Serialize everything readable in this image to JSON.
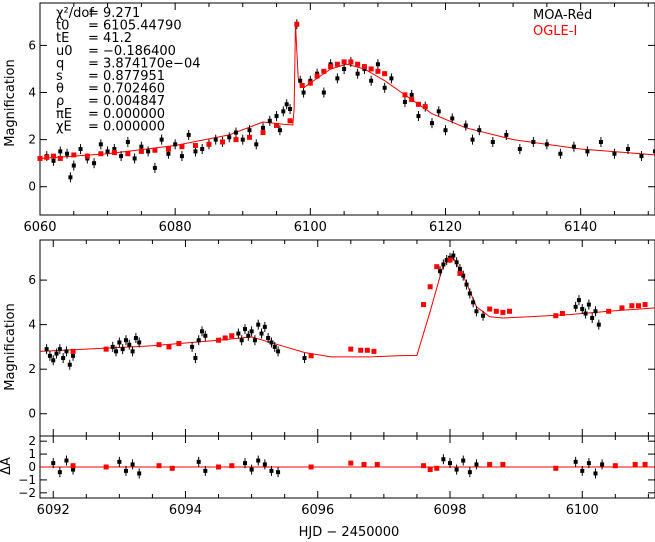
{
  "chart_data": [
    {
      "type": "scatter",
      "panel": "top",
      "ylabel": "Magnification",
      "xlim": [
        6060,
        6151
      ],
      "ylim": [
        -1.2,
        7.8
      ],
      "xticks": [
        6060,
        6080,
        6100,
        6120,
        6140
      ],
      "yticks": [
        0,
        2,
        4,
        6
      ],
      "legend": [
        {
          "name": "MOA-Red",
          "color": "#000000"
        },
        {
          "name": "OGLE-I",
          "color": "#ff0000"
        }
      ],
      "params": [
        {
          "name": "χ²/dof",
          "value": "= 9.271"
        },
        {
          "name": "t0",
          "value": "= 6105.44790"
        },
        {
          "name": "tE",
          "value": "= 41.2"
        },
        {
          "name": "u0",
          "value": "= −0.186400"
        },
        {
          "name": "q",
          "value": "= 3.874170e−04"
        },
        {
          "name": "s",
          "value": "= 0.877951"
        },
        {
          "name": "θ",
          "value": "= 0.702460"
        },
        {
          "name": "ρ",
          "value": "= 0.004847"
        },
        {
          "name": "πE",
          "value": "= 0.000000"
        },
        {
          "name": "χE",
          "value": "= 0.000000"
        }
      ],
      "model": {
        "x": [
          6060,
          6070,
          6080,
          6088,
          6093,
          6096,
          6097.4,
          6097.6,
          6097.8,
          6098.2,
          6099,
          6101,
          6103,
          6105.4,
          6108,
          6111,
          6114,
          6118,
          6123,
          6130,
          6140,
          6151
        ],
        "y": [
          1.2,
          1.4,
          1.75,
          2.2,
          2.75,
          2.65,
          2.62,
          3.3,
          6.9,
          4.6,
          4.2,
          4.6,
          5.0,
          5.2,
          5.0,
          4.5,
          3.9,
          3.1,
          2.5,
          2.0,
          1.6,
          1.35
        ]
      },
      "series": [
        {
          "name": "MOA-Red",
          "color": "#000000",
          "x": [
            6060,
            6061,
            6062,
            6063,
            6064,
            6064.5,
            6065,
            6066,
            6067,
            6068,
            6069,
            6070,
            6071,
            6072,
            6073,
            6074,
            6075,
            6076,
            6077,
            6078,
            6079,
            6080,
            6081,
            6082,
            6083,
            6084,
            6085,
            6086,
            6087,
            6088,
            6089,
            6090,
            6091,
            6092,
            6093,
            6094,
            6095,
            6095.5,
            6096,
            6096.5,
            6097,
            6098,
            6098.5,
            6099,
            6100,
            6101,
            6102,
            6103,
            6104,
            6105,
            6106,
            6107,
            6108,
            6109,
            6110,
            6111,
            6112,
            6114,
            6115,
            6116,
            6117,
            6118,
            6119,
            6120,
            6121,
            6123,
            6124,
            6125,
            6127,
            6129,
            6131,
            6133,
            6135,
            6137,
            6139,
            6141,
            6143,
            6145,
            6147,
            6149,
            6151
          ],
          "y": [
            1.2,
            1.3,
            1.1,
            1.5,
            1.4,
            0.4,
            0.9,
            1.6,
            1.2,
            1.0,
            1.8,
            1.5,
            1.6,
            1.3,
            1.9,
            1.2,
            1.7,
            1.5,
            0.8,
            2.0,
            1.4,
            1.8,
            1.3,
            2.2,
            1.5,
            1.6,
            1.8,
            2.0,
            1.9,
            2.1,
            2.3,
            2.0,
            2.4,
            1.8,
            2.5,
            2.8,
            3.0,
            2.4,
            3.2,
            3.5,
            3.3,
            6.9,
            4.5,
            4.0,
            4.5,
            4.8,
            4.0,
            5.2,
            4.6,
            5.0,
            5.3,
            4.8,
            5.0,
            4.5,
            5.2,
            4.2,
            4.6,
            3.6,
            3.9,
            3.0,
            3.4,
            2.7,
            3.2,
            2.4,
            2.9,
            2.6,
            2.0,
            2.4,
            1.9,
            2.2,
            1.6,
            1.9,
            1.8,
            1.4,
            1.7,
            1.5,
            1.9,
            1.4,
            1.6,
            1.3,
            1.5
          ]
        },
        {
          "name": "OGLE-I",
          "color": "#ff0000",
          "x": [
            6060,
            6061,
            6062,
            6063,
            6065,
            6067,
            6069,
            6071,
            6073,
            6075,
            6077,
            6079,
            6081,
            6083,
            6085,
            6087,
            6089,
            6091,
            6093,
            6095,
            6097,
            6098,
            6098.8,
            6100,
            6101,
            6102,
            6103,
            6104,
            6105,
            6106,
            6107,
            6108,
            6109,
            6110,
            6111,
            6114,
            6115,
            6116,
            6117
          ],
          "y": [
            1.2,
            1.25,
            1.3,
            1.2,
            1.35,
            1.3,
            1.4,
            1.45,
            1.4,
            1.5,
            1.55,
            1.6,
            1.7,
            1.75,
            1.8,
            1.9,
            2.0,
            2.1,
            2.3,
            2.6,
            2.8,
            6.9,
            4.3,
            4.4,
            4.7,
            4.9,
            5.1,
            5.2,
            5.3,
            5.3,
            5.2,
            5.1,
            5.0,
            4.9,
            4.8,
            3.9,
            3.7,
            3.5,
            3.4
          ]
        }
      ]
    },
    {
      "type": "scatter",
      "panel": "middle",
      "ylabel": "Magnification",
      "xlim": [
        6091.8,
        6101.1
      ],
      "ylim": [
        -1,
        7.8
      ],
      "xticks": [
        6092,
        6094,
        6096,
        6098,
        6100
      ],
      "yticks": [
        0,
        2,
        4,
        6
      ],
      "model": {
        "x": [
          6091.8,
          6092.5,
          6093.5,
          6094.5,
          6095,
          6095.4,
          6095.8,
          6096.2,
          6096.8,
          6097.2,
          6097.5,
          6097.7,
          6097.9,
          6098.05,
          6098.2,
          6098.4,
          6098.6,
          6098.8,
          6099.2,
          6099.8,
          6100.4,
          6101.1
        ],
        "y": [
          2.8,
          2.9,
          3.05,
          3.3,
          3.45,
          3.1,
          2.75,
          2.55,
          2.55,
          2.6,
          2.62,
          4.6,
          6.7,
          7.0,
          6.2,
          4.8,
          4.35,
          4.3,
          4.35,
          4.45,
          4.6,
          4.75
        ]
      },
      "series": [
        {
          "name": "MOA-Red",
          "color": "#000000",
          "x": [
            6091.9,
            6091.95,
            6092.0,
            6092.05,
            6092.1,
            6092.15,
            6092.2,
            6092.25,
            6092.3,
            6092.9,
            6092.95,
            6093.0,
            6093.05,
            6093.1,
            6093.15,
            6093.2,
            6093.25,
            6093.3,
            6094.1,
            6094.15,
            6094.2,
            6094.25,
            6094.3,
            6094.8,
            6094.85,
            6094.9,
            6094.95,
            6095.0,
            6095.05,
            6095.1,
            6095.15,
            6095.2,
            6095.25,
            6095.3,
            6095.35,
            6095.4,
            6095.8,
            6097.85,
            6097.9,
            6097.95,
            6098.0,
            6098.05,
            6098.1,
            6098.15,
            6098.2,
            6098.25,
            6098.3,
            6098.35,
            6098.4,
            6098.5,
            6099.9,
            6099.95,
            6100.0,
            6100.05,
            6100.1,
            6100.15,
            6100.2,
            6100.25
          ],
          "y": [
            2.9,
            2.6,
            2.4,
            2.7,
            2.9,
            2.5,
            2.8,
            2.2,
            2.6,
            3.0,
            2.8,
            3.2,
            2.9,
            3.3,
            3.1,
            2.8,
            3.4,
            3.2,
            3.0,
            2.5,
            3.3,
            3.7,
            3.5,
            3.6,
            3.3,
            3.8,
            3.5,
            3.7,
            3.3,
            4.0,
            3.6,
            3.9,
            3.4,
            3.2,
            3.0,
            2.8,
            2.5,
            6.4,
            6.7,
            6.9,
            7.0,
            7.1,
            6.8,
            6.5,
            6.2,
            5.8,
            5.4,
            5.0,
            4.6,
            4.4,
            4.8,
            5.1,
            4.7,
            4.5,
            4.9,
            4.3,
            4.6,
            4.0
          ]
        },
        {
          "name": "OGLE-I",
          "color": "#ff0000",
          "x": [
            6092.3,
            6092.8,
            6093.6,
            6093.75,
            6093.9,
            6094.5,
            6094.6,
            6094.7,
            6095.9,
            6096.5,
            6096.65,
            6096.75,
            6096.85,
            6097.6,
            6097.7,
            6097.8,
            6098.0,
            6098.15,
            6098.6,
            6098.7,
            6098.8,
            6098.9,
            6099.6,
            6099.7,
            6100.4,
            6100.6,
            6100.75,
            6100.85,
            6100.95
          ],
          "y": [
            2.8,
            2.9,
            3.1,
            3.0,
            3.15,
            3.3,
            3.4,
            3.5,
            2.6,
            2.9,
            2.85,
            2.85,
            2.8,
            4.9,
            5.7,
            6.6,
            6.9,
            6.3,
            4.7,
            4.6,
            4.55,
            4.6,
            4.4,
            4.5,
            4.6,
            4.75,
            4.85,
            4.85,
            4.9
          ]
        }
      ]
    },
    {
      "type": "scatter",
      "panel": "residuals",
      "ylabel": "ΔA",
      "xlabel": "HJD − 2450000",
      "xlim": [
        6091.8,
        6101.1
      ],
      "ylim": [
        -2.4,
        2.4
      ],
      "xticks": [
        6092,
        6094,
        6096,
        6098,
        6100
      ],
      "yticks": [
        -2,
        -1,
        0,
        1,
        2
      ],
      "ytick_labels": [
        "−2",
        "−1",
        "0",
        "1",
        "2"
      ],
      "series": [
        {
          "name": "MOA-Red",
          "color": "#000000",
          "x": [
            6092.0,
            6092.1,
            6092.2,
            6092.3,
            6093.0,
            6093.1,
            6093.2,
            6093.3,
            6094.2,
            6094.3,
            6094.9,
            6095.0,
            6095.1,
            6095.2,
            6095.3,
            6095.4,
            6097.9,
            6098.0,
            6098.1,
            6098.2,
            6098.3,
            6098.4,
            6099.9,
            6100.0,
            6100.1,
            6100.2,
            6100.3
          ],
          "y": [
            0.3,
            -0.4,
            0.5,
            -0.2,
            0.4,
            -0.3,
            0.2,
            -0.5,
            0.4,
            -0.3,
            0.3,
            -0.2,
            0.5,
            0.2,
            -0.3,
            -0.4,
            0.6,
            0.3,
            -0.2,
            0.5,
            -0.4,
            0.2,
            0.4,
            -0.3,
            0.3,
            -0.5,
            0.2
          ]
        },
        {
          "name": "OGLE-I",
          "color": "#ff0000",
          "x": [
            6092.3,
            6092.8,
            6093.6,
            6093.8,
            6094.5,
            6094.7,
            6095.9,
            6096.5,
            6096.7,
            6096.9,
            6097.6,
            6097.7,
            6097.8,
            6098.6,
            6098.8,
            6099.6,
            6100.5,
            6100.8,
            6100.95
          ],
          "y": [
            0.1,
            0.0,
            0.1,
            -0.1,
            0.0,
            0.1,
            0.0,
            0.3,
            0.2,
            0.2,
            0.1,
            -0.2,
            -0.1,
            0.2,
            0.2,
            -0.1,
            0.1,
            0.2,
            0.2
          ]
        }
      ]
    }
  ]
}
